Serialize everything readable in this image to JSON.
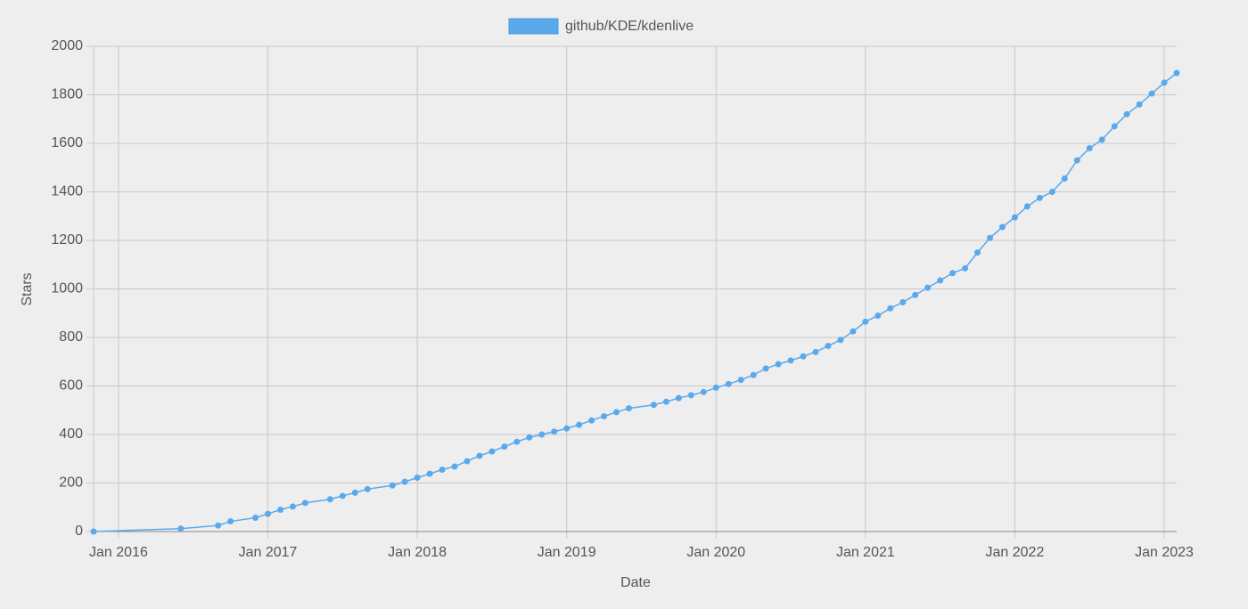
{
  "chart_data": {
    "type": "line",
    "x_label": "Date",
    "y_label": "Stars",
    "legend": "top",
    "grid": true,
    "x": [
      "2015-11",
      "2016-06",
      "2016-09",
      "2016-10",
      "2016-12",
      "2017-01",
      "2017-02",
      "2017-03",
      "2017-04",
      "2017-06",
      "2017-07",
      "2017-08",
      "2017-09",
      "2017-11",
      "2017-12",
      "2018-01",
      "2018-02",
      "2018-03",
      "2018-04",
      "2018-05",
      "2018-06",
      "2018-07",
      "2018-08",
      "2018-09",
      "2018-10",
      "2018-11",
      "2018-12",
      "2019-01",
      "2019-02",
      "2019-03",
      "2019-04",
      "2019-05",
      "2019-06",
      "2019-08",
      "2019-09",
      "2019-10",
      "2019-11",
      "2019-12",
      "2020-01",
      "2020-02",
      "2020-03",
      "2020-04",
      "2020-05",
      "2020-06",
      "2020-07",
      "2020-08",
      "2020-09",
      "2020-10",
      "2020-11",
      "2020-12",
      "2021-01",
      "2021-02",
      "2021-03",
      "2021-04",
      "2021-05",
      "2021-06",
      "2021-07",
      "2021-08",
      "2021-09",
      "2021-10",
      "2021-11",
      "2021-12",
      "2022-01",
      "2022-02",
      "2022-03",
      "2022-04",
      "2022-05",
      "2022-06",
      "2022-07",
      "2022-08",
      "2022-09",
      "2022-10",
      "2022-11",
      "2022-12",
      "2023-01",
      "2023-02"
    ],
    "series": [
      {
        "name": "github/KDE/kdenlive",
        "color": "#5aa9ed",
        "values": [
          0,
          12,
          25,
          42,
          57,
          73,
          90,
          103,
          118,
          133,
          147,
          160,
          175,
          190,
          205,
          222,
          238,
          255,
          268,
          290,
          312,
          330,
          350,
          370,
          388,
          400,
          412,
          425,
          440,
          458,
          475,
          492,
          508,
          522,
          535,
          550,
          562,
          575,
          593,
          608,
          625,
          645,
          672,
          690,
          705,
          722,
          740,
          765,
          790,
          825,
          865,
          890,
          920,
          945,
          975,
          1005,
          1035,
          1065,
          1085,
          1150,
          1210,
          1255,
          1295,
          1340,
          1375,
          1400,
          1455,
          1530,
          1580,
          1615,
          1670,
          1720,
          1760,
          1805,
          1850,
          1890
        ]
      }
    ],
    "xlim": [
      "2015-11",
      "2023-02"
    ],
    "xticks": [
      {
        "value": "2016-01",
        "label": "Jan 2016"
      },
      {
        "value": "2017-01",
        "label": "Jan 2017"
      },
      {
        "value": "2018-01",
        "label": "Jan 2018"
      },
      {
        "value": "2019-01",
        "label": "Jan 2019"
      },
      {
        "value": "2020-01",
        "label": "Jan 2020"
      },
      {
        "value": "2021-01",
        "label": "Jan 2021"
      },
      {
        "value": "2022-01",
        "label": "Jan 2022"
      },
      {
        "value": "2023-01",
        "label": "Jan 2023"
      }
    ],
    "ylim": [
      0,
      2000
    ],
    "yticks": [
      0,
      200,
      400,
      600,
      800,
      1000,
      1200,
      1400,
      1600,
      1800,
      2000
    ]
  }
}
